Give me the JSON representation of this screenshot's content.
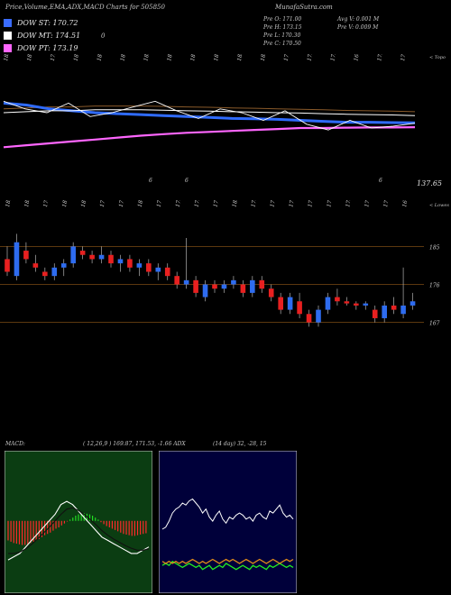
{
  "header": {
    "title": "Price,Volume,EMA,ADX,MACD Charts for 505850",
    "site": "MunafaSutra.com"
  },
  "legend": [
    {
      "label": "DOW ST: 170.72",
      "color": "#3a6cff"
    },
    {
      "label": "DOW MT: 174.51",
      "color": "#ffffff"
    },
    {
      "label": "DOW PT: 173.19",
      "color": "#ff66ff"
    }
  ],
  "legend_note": "0",
  "stats": {
    "col1": [
      "Pre  O: 171.00",
      "Pre  H: 173.15",
      "Pre  L: 170.30",
      "Pre  C: 170.50"
    ],
    "col2": [
      "Avg V: 0.001 M",
      "Pre  V: 0.009 M"
    ]
  },
  "price_badge": "137.65",
  "top_axis_label": "< Topo",
  "mid_axis_label": "< Lowes",
  "macd_label": "MACD:",
  "macd_values": "( 12,26,9 ) 169.87,  171.53, -1.66 ADX",
  "adx_values": "(14  day) 32,  -28,  15",
  "colors": {
    "up": "#2e6cf0",
    "down": "#e82020",
    "ema_fast": "#2f6bff",
    "ema_pt": "#ff66ff",
    "macd_bg": "#0b3d12",
    "adx_bg": "#00003a"
  },
  "chart_data": [
    {
      "type": "line",
      "name": "price-ema-panel",
      "top_labels": [
        "183",
        "180",
        "179",
        "18",
        "184",
        "187",
        "183",
        "181",
        "187",
        "187",
        "183",
        "182",
        "177",
        "175",
        "172",
        "168",
        "173",
        "171"
      ],
      "bottom_labels": [
        "6",
        "6",
        "6"
      ],
      "ylim": [
        136,
        200
      ],
      "series": [
        {
          "name": "DOW ST",
          "values": [
            181,
            180,
            178,
            177,
            176,
            175.5,
            175,
            174.5,
            174,
            173.5,
            173,
            172.8,
            172.5,
            172,
            171.5,
            171,
            171,
            170.8,
            170.7
          ]
        },
        {
          "name": "DOW MT",
          "values": [
            176,
            176.5,
            177,
            177,
            177.5,
            177.5,
            177.5,
            177.3,
            177,
            176.8,
            176.5,
            176.3,
            176,
            175.8,
            175.5,
            175.2,
            175,
            174.8,
            174.5
          ]
        },
        {
          "name": "DOW PT",
          "values": [
            158,
            159,
            160,
            161,
            162,
            163,
            164,
            164.8,
            165.5,
            166,
            166.5,
            167,
            167.5,
            168,
            168,
            168.2,
            168.3,
            168.3,
            168.4
          ]
        },
        {
          "name": "close",
          "values": [
            182,
            178,
            176,
            181,
            174,
            176,
            179,
            182,
            177,
            173,
            178,
            176,
            172,
            177,
            170,
            167,
            172,
            168,
            169,
            170.5
          ]
        }
      ]
    },
    {
      "type": "bar",
      "name": "candlestick-panel",
      "top_labels": [
        "185",
        "183",
        "174",
        "181",
        "180",
        "176",
        "177",
        "184",
        "176",
        "178",
        "175",
        "177",
        "183",
        "178",
        "177",
        "171",
        "177",
        "170",
        "178",
        "171",
        "170",
        "167"
      ],
      "ylim": [
        165,
        190
      ],
      "y_ticks": [
        185,
        176,
        167
      ],
      "candles": [
        {
          "o": 182,
          "h": 185,
          "l": 178,
          "c": 179
        },
        {
          "o": 178,
          "h": 188,
          "l": 177,
          "c": 186
        },
        {
          "o": 184,
          "h": 186,
          "l": 181,
          "c": 182
        },
        {
          "o": 181,
          "h": 183,
          "l": 179,
          "c": 180
        },
        {
          "o": 179,
          "h": 180,
          "l": 177,
          "c": 178
        },
        {
          "o": 178,
          "h": 181,
          "l": 177,
          "c": 180
        },
        {
          "o": 180,
          "h": 182,
          "l": 178,
          "c": 181
        },
        {
          "o": 181,
          "h": 186,
          "l": 180,
          "c": 185
        },
        {
          "o": 184,
          "h": 185,
          "l": 182,
          "c": 183
        },
        {
          "o": 183,
          "h": 184,
          "l": 181,
          "c": 182
        },
        {
          "o": 182,
          "h": 185,
          "l": 181,
          "c": 183
        },
        {
          "o": 183,
          "h": 184,
          "l": 180,
          "c": 181
        },
        {
          "o": 181,
          "h": 183,
          "l": 179,
          "c": 182
        },
        {
          "o": 182,
          "h": 183,
          "l": 179,
          "c": 180
        },
        {
          "o": 180,
          "h": 182,
          "l": 178,
          "c": 181
        },
        {
          "o": 181,
          "h": 182,
          "l": 178,
          "c": 179
        },
        {
          "o": 179,
          "h": 181,
          "l": 177,
          "c": 180
        },
        {
          "o": 180,
          "h": 181,
          "l": 177,
          "c": 178
        },
        {
          "o": 178,
          "h": 179,
          "l": 175,
          "c": 176
        },
        {
          "o": 176,
          "h": 187,
          "l": 175,
          "c": 177
        },
        {
          "o": 177,
          "h": 178,
          "l": 173,
          "c": 174
        },
        {
          "o": 173,
          "h": 177,
          "l": 172,
          "c": 176
        },
        {
          "o": 176,
          "h": 177,
          "l": 174,
          "c": 175
        },
        {
          "o": 175,
          "h": 177,
          "l": 174,
          "c": 176
        },
        {
          "o": 176,
          "h": 178,
          "l": 175,
          "c": 177
        },
        {
          "o": 176,
          "h": 177,
          "l": 173,
          "c": 174
        },
        {
          "o": 174,
          "h": 178,
          "l": 173,
          "c": 177
        },
        {
          "o": 177,
          "h": 178,
          "l": 174,
          "c": 175
        },
        {
          "o": 175,
          "h": 176,
          "l": 172,
          "c": 173
        },
        {
          "o": 173,
          "h": 174,
          "l": 169,
          "c": 170
        },
        {
          "o": 170,
          "h": 174,
          "l": 169,
          "c": 173
        },
        {
          "o": 172,
          "h": 174,
          "l": 168,
          "c": 169
        },
        {
          "o": 169,
          "h": 170,
          "l": 166,
          "c": 167
        },
        {
          "o": 167,
          "h": 171,
          "l": 166,
          "c": 170
        },
        {
          "o": 170,
          "h": 174,
          "l": 169,
          "c": 173
        },
        {
          "o": 173,
          "h": 175,
          "l": 171,
          "c": 172
        },
        {
          "o": 172,
          "h": 173,
          "l": 171,
          "c": 171.5
        },
        {
          "o": 171.5,
          "h": 172,
          "l": 170,
          "c": 171
        },
        {
          "o": 171,
          "h": 172,
          "l": 170,
          "c": 171.5
        },
        {
          "o": 170,
          "h": 171,
          "l": 167,
          "c": 168
        },
        {
          "o": 168,
          "h": 172,
          "l": 167,
          "c": 171
        },
        {
          "o": 171,
          "h": 173,
          "l": 169,
          "c": 170
        },
        {
          "o": 169,
          "h": 180,
          "l": 168,
          "c": 171
        },
        {
          "o": 171,
          "h": 174,
          "l": 170,
          "c": 172
        }
      ]
    },
    {
      "type": "bar",
      "name": "macd-panel",
      "histogram": [
        -3,
        -3.2,
        -3.4,
        -3.5,
        -3.6,
        -3.7,
        -3.7,
        -3.6,
        -3.4,
        -3.2,
        -3,
        -2.8,
        -2.5,
        -2.2,
        -2,
        -1.8,
        -1.5,
        -1.2,
        -1,
        -0.7,
        -0.4,
        -0.1,
        0.2,
        0.5,
        0.8,
        1,
        1.1,
        1.2,
        1.1,
        1,
        0.8,
        0.5,
        0.2,
        -0.2,
        -0.5,
        -0.8,
        -1,
        -1.2,
        -1.4,
        -1.6,
        -1.8,
        -2,
        -2.1,
        -2.2,
        -2.3,
        -2.3,
        -2.2,
        -2.1,
        -2,
        -1.9
      ],
      "series": [
        {
          "name": "macd",
          "values": [
            -6,
            -5.5,
            -5,
            -4,
            -3,
            -2,
            -1,
            0,
            1,
            2.5,
            3,
            2.5,
            1.5,
            0.5,
            -0.5,
            -1.5,
            -2.5,
            -3,
            -3.5,
            -4,
            -4.5,
            -5,
            -5,
            -4.5,
            -4
          ]
        },
        {
          "name": "signal",
          "values": [
            -5,
            -5,
            -4.8,
            -4.3,
            -3.6,
            -2.8,
            -1.9,
            -1,
            0,
            1,
            1.8,
            2,
            1.6,
            1,
            0.2,
            -0.6,
            -1.5,
            -2.2,
            -2.8,
            -3.3,
            -3.8,
            -4.2,
            -4.5,
            -4.5,
            -4.3
          ]
        }
      ],
      "ylim": [
        -10,
        8
      ]
    },
    {
      "type": "line",
      "name": "adx-panel",
      "series": [
        {
          "name": "adx",
          "values": [
            30,
            31,
            34,
            38,
            40,
            41,
            43,
            42,
            44,
            45,
            43,
            41,
            38,
            40,
            36,
            34,
            37,
            39,
            35,
            33,
            36,
            35,
            37,
            38,
            37,
            35,
            36,
            34,
            37,
            38,
            36,
            35,
            39,
            38,
            40,
            42,
            38,
            36,
            37,
            35
          ]
        },
        {
          "name": "+di",
          "values": [
            12,
            13,
            12,
            14,
            13,
            12,
            11,
            12,
            13,
            12,
            11,
            12,
            10,
            11,
            12,
            10,
            11,
            12,
            11,
            13,
            12,
            11,
            10,
            11,
            12,
            11,
            10,
            12,
            11,
            12,
            11,
            10,
            12,
            11,
            12,
            13,
            12,
            11,
            12,
            11
          ]
        },
        {
          "name": "-di",
          "values": [
            14,
            13,
            14,
            13,
            14,
            13,
            14,
            13,
            14,
            15,
            14,
            13,
            14,
            13,
            14,
            15,
            14,
            13,
            14,
            15,
            14,
            15,
            14,
            13,
            14,
            15,
            14,
            13,
            14,
            15,
            14,
            13,
            14,
            15,
            14,
            13,
            14,
            15,
            14,
            15
          ]
        }
      ],
      "ylim": [
        0,
        60
      ]
    }
  ]
}
